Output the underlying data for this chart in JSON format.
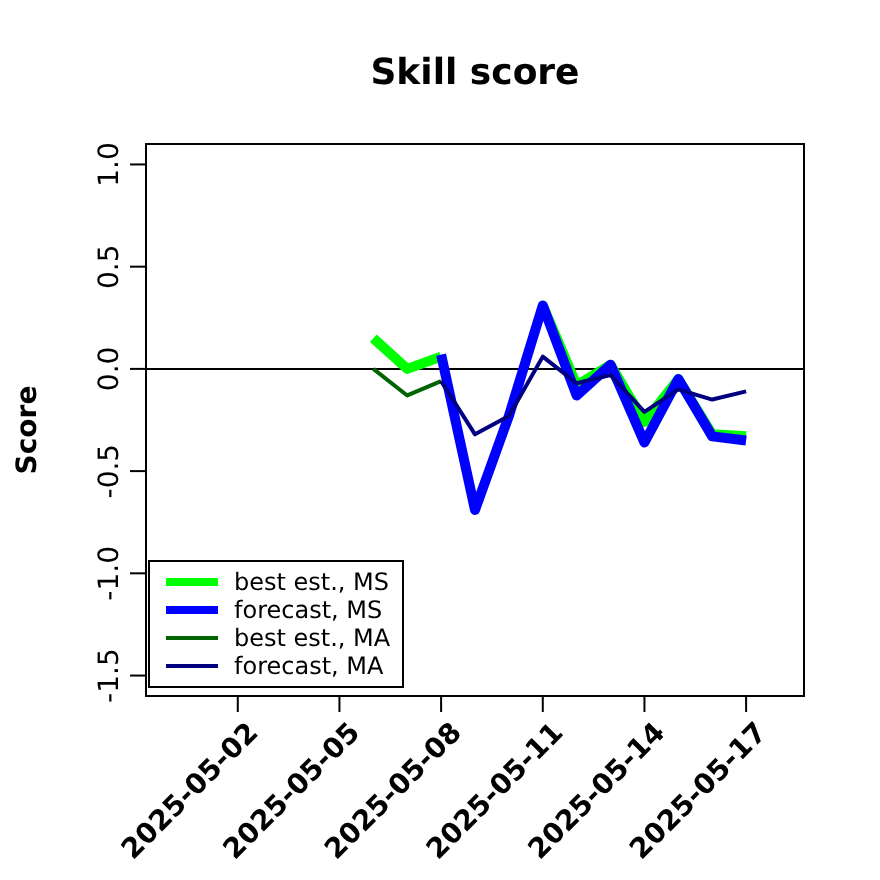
{
  "chart_data": {
    "type": "line",
    "title": "Skill score",
    "ylabel": "Score",
    "xlim": [
      "2025-04-29T07:00",
      "2025-05-18T17:00"
    ],
    "xticks": [
      "2025-05-02",
      "2025-05-05",
      "2025-05-08",
      "2025-05-11",
      "2025-05-14",
      "2025-05-17"
    ],
    "ylim": [
      -1.6,
      1.1
    ],
    "yticks": [
      {
        "value": -1.5,
        "label": "-1.5"
      },
      {
        "value": -1,
        "label": "-1.0"
      },
      {
        "value": -0.5,
        "label": "-0.5"
      },
      {
        "value": 0,
        "label": "0.0"
      },
      {
        "value": 0.5,
        "label": "0.5"
      },
      {
        "value": 1,
        "label": "1.0"
      }
    ],
    "x": [
      "2025-05-06",
      "2025-05-07",
      "2025-05-08",
      "2025-05-09",
      "2025-05-10",
      "2025-05-11",
      "2025-05-12",
      "2025-05-13",
      "2025-05-14",
      "2025-05-15",
      "2025-05-16",
      "2025-05-17"
    ],
    "series": [
      {
        "name": "best est., MS",
        "color": "#00ff00",
        "values": [
          0.15,
          0.0,
          0.06,
          null,
          null,
          0.31,
          -0.08,
          0.02,
          -0.26,
          -0.05,
          -0.32,
          -0.33
        ]
      },
      {
        "name": "forecast, MS",
        "color": "#0000ff",
        "values": [
          null,
          null,
          0.07,
          -0.69,
          -0.23,
          0.31,
          -0.13,
          0.02,
          -0.36,
          -0.05,
          -0.33,
          -0.35
        ]
      },
      {
        "name": "best est., MA",
        "color": "#006400",
        "values": [
          0.0,
          -0.13,
          -0.06,
          null,
          null,
          null,
          null,
          null,
          null,
          null,
          null,
          null
        ]
      },
      {
        "name": "forecast, MA",
        "color": "#000080",
        "values": [
          null,
          null,
          -0.06,
          -0.32,
          -0.23,
          0.06,
          -0.07,
          -0.03,
          -0.21,
          -0.1,
          -0.15,
          -0.11
        ]
      }
    ],
    "ref_lines": [
      {
        "axis": "y",
        "value": 0,
        "color": "#000000"
      }
    ],
    "legend": "bottom left",
    "grid": false,
    "marker": "none",
    "line_style": "solid"
  }
}
